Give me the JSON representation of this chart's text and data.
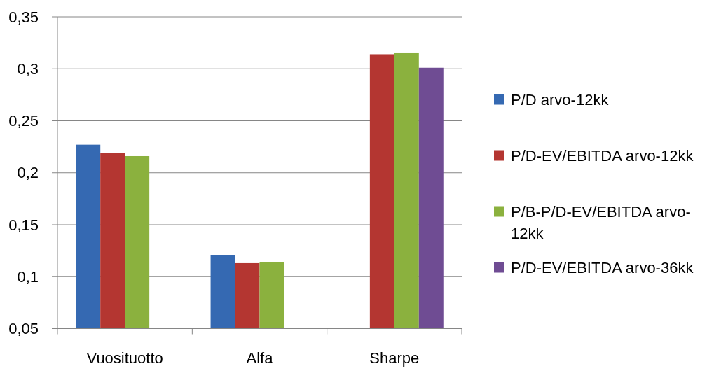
{
  "chart_data": {
    "type": "bar",
    "categories": [
      "Vuosituotto",
      "Alfa",
      "Sharpe"
    ],
    "series": [
      {
        "name": "P/D arvo-12kk",
        "color": "#3569b2",
        "values": [
          0.227,
          0.121,
          null
        ]
      },
      {
        "name": "P/D-EV/EBITDA arvo-12kk",
        "color": "#b43631",
        "values": [
          0.219,
          0.113,
          0.314
        ]
      },
      {
        "name": "P/B-P/D-EV/EBITDA arvo-12kk",
        "color": "#8bb13e",
        "values": [
          0.216,
          0.114,
          0.315
        ]
      },
      {
        "name": "P/D-EV/EBITDA arvo-36kk",
        "color": "#6f4c93",
        "values": [
          null,
          null,
          0.301
        ]
      }
    ],
    "ylim": [
      0.05,
      0.35
    ],
    "yticks": [
      {
        "value": 0.05,
        "label": "0,05"
      },
      {
        "value": 0.1,
        "label": "0,1"
      },
      {
        "value": 0.15,
        "label": "0,15"
      },
      {
        "value": 0.2,
        "label": "0,2"
      },
      {
        "value": 0.25,
        "label": "0,25"
      },
      {
        "value": 0.3,
        "label": "0,3"
      },
      {
        "value": 0.35,
        "label": "0,35"
      }
    ],
    "grid": "y",
    "legend": "right"
  }
}
